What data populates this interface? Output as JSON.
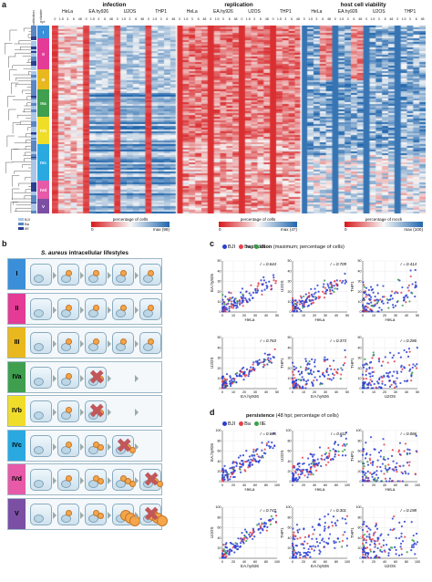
{
  "panel_labels": {
    "a": "a",
    "b": "b",
    "c": "c",
    "d": "d"
  },
  "heatmap": {
    "col_headers": {
      "collection": "collection",
      "cluster": "cluster"
    },
    "sections": [
      {
        "title": "infection",
        "cells": [
          "HeLa",
          "EA.hy926",
          "U2OS",
          "THP1"
        ]
      },
      {
        "title": "replication",
        "cells": [
          "HeLa",
          "EA.hy926",
          "U2OS",
          "THP1"
        ]
      },
      {
        "title": "host cell viability",
        "cells": [
          "HeLa",
          "EA.hy926",
          "U2OS",
          "THP1"
        ]
      }
    ],
    "hpi_label": "hpi",
    "timepoints": [
      "0",
      "1.5",
      "3",
      "6",
      "48"
    ],
    "cluster_labels": [
      "I",
      "II",
      "III",
      "IVa",
      "IVb",
      "IVc",
      "IVd",
      "V"
    ],
    "collection_legend": [
      "BJI",
      "Ba",
      "IIE"
    ],
    "colorbars": [
      {
        "title": "percentage of cells",
        "min": "0",
        "max": "max (99)"
      },
      {
        "title": "percentage of cells",
        "min": "0",
        "max": "max (47)"
      },
      {
        "title": "percentage of mock",
        "min": "0",
        "max": "max (100)"
      }
    ]
  },
  "lifestyles": {
    "title_italic": "S. aureus",
    "title_rest": " intracellular lifestyles",
    "rows": [
      {
        "label": "I",
        "color": "#3b8fd9"
      },
      {
        "label": "II",
        "color": "#e33b96"
      },
      {
        "label": "III",
        "color": "#e9b81f"
      },
      {
        "label": "IVa",
        "color": "#3f9f4f"
      },
      {
        "label": "IVb",
        "color": "#f0dd2a"
      },
      {
        "label": "IVc",
        "color": "#29a9e0"
      },
      {
        "label": "IVd",
        "color": "#e65aa8"
      },
      {
        "label": "V",
        "color": "#7b4fa3"
      }
    ]
  },
  "scatter_c": {
    "title_bold": "replication",
    "title_rest": " (maximum; percentage of cells)",
    "legend": [
      {
        "name": "BJI",
        "color": "#2a3fd1"
      },
      {
        "name": "Ba",
        "color": "#e8404a"
      },
      {
        "name": "IIE",
        "color": "#3aa14a"
      }
    ],
    "plots": [
      {
        "x": "HeLa",
        "y": "EA.hy926",
        "r": "r = 0.644",
        "xt": [
          "0",
          "10",
          "20",
          "30",
          "40",
          "50"
        ],
        "yt": [
          "0",
          "10",
          "20",
          "30",
          "40",
          "50"
        ]
      },
      {
        "x": "HeLa",
        "y": "U2OS",
        "r": "r = 0.709",
        "xt": [
          "0",
          "10",
          "20",
          "30",
          "40",
          "50"
        ],
        "yt": [
          "0",
          "10",
          "20",
          "30",
          "40",
          "50"
        ]
      },
      {
        "x": "HeLa",
        "y": "THP1",
        "r": "r = 0.414",
        "xt": [
          "0",
          "10",
          "20",
          "30",
          "40",
          "50"
        ],
        "yt": [
          "0",
          "10",
          "20",
          "30",
          "40",
          "50"
        ]
      },
      {
        "x": "EA.hy926",
        "y": "U2OS",
        "r": "r = 0.763",
        "xt": [
          "0",
          "10",
          "20",
          "30",
          "40",
          "50"
        ],
        "yt": [
          "0",
          "10",
          "20",
          "30",
          "40",
          "50"
        ]
      },
      {
        "x": "EA.hy926",
        "y": "THP1",
        "r": "r = 0.373",
        "xt": [
          "0",
          "10",
          "20",
          "30",
          "40",
          "50"
        ],
        "yt": [
          "0",
          "10",
          "20",
          "30",
          "40",
          "50"
        ]
      },
      {
        "x": "U2OS",
        "y": "THP1",
        "r": "r = 0.286",
        "xt": [
          "0",
          "10",
          "20",
          "30",
          "40",
          "50"
        ],
        "yt": [
          "0",
          "10",
          "20",
          "30",
          "40",
          "50"
        ]
      }
    ]
  },
  "scatter_d": {
    "title_bold": "persistence",
    "title_rest": " (48 hpi; percentage of cells)",
    "legend": [
      {
        "name": "BJI",
        "color": "#2a3fd1"
      },
      {
        "name": "Ba",
        "color": "#e8404a"
      },
      {
        "name": "IIE",
        "color": "#3aa14a"
      }
    ],
    "plots": [
      {
        "x": "HeLa",
        "y": "EA.hy926",
        "r": "r = 0.665",
        "xt": [
          "0",
          "20",
          "40",
          "60",
          "80",
          "100"
        ],
        "yt": [
          "0",
          "20",
          "40",
          "60",
          "80",
          "100"
        ]
      },
      {
        "x": "HeLa",
        "y": "U2OS",
        "r": "r = 0.611",
        "xt": [
          "0",
          "20",
          "40",
          "60",
          "80",
          "100"
        ],
        "yt": [
          "0",
          "20",
          "40",
          "60",
          "80",
          "100"
        ]
      },
      {
        "x": "HeLa",
        "y": "THP1",
        "r": "r = 0.066",
        "xt": [
          "0",
          "20",
          "40",
          "60",
          "80",
          "100"
        ],
        "yt": [
          "0",
          "20",
          "40",
          "60",
          "80",
          "100"
        ]
      },
      {
        "x": "EA.hy926",
        "y": "U2OS",
        "r": "r = 0.747",
        "xt": [
          "0",
          "20",
          "40",
          "60",
          "80",
          "100"
        ],
        "yt": [
          "0",
          "20",
          "40",
          "60",
          "80",
          "100"
        ]
      },
      {
        "x": "EA.hy926",
        "y": "THP1",
        "r": "r = 0.301",
        "xt": [
          "0",
          "20",
          "40",
          "60",
          "80",
          "100"
        ],
        "yt": [
          "0",
          "20",
          "40",
          "60",
          "80",
          "100"
        ]
      },
      {
        "x": "U2OS",
        "y": "THP1",
        "r": "r = 0.198",
        "xt": [
          "0",
          "20",
          "40",
          "60",
          "80",
          "100"
        ],
        "yt": [
          "0",
          "20",
          "40",
          "60",
          "80",
          "100"
        ]
      }
    ]
  }
}
